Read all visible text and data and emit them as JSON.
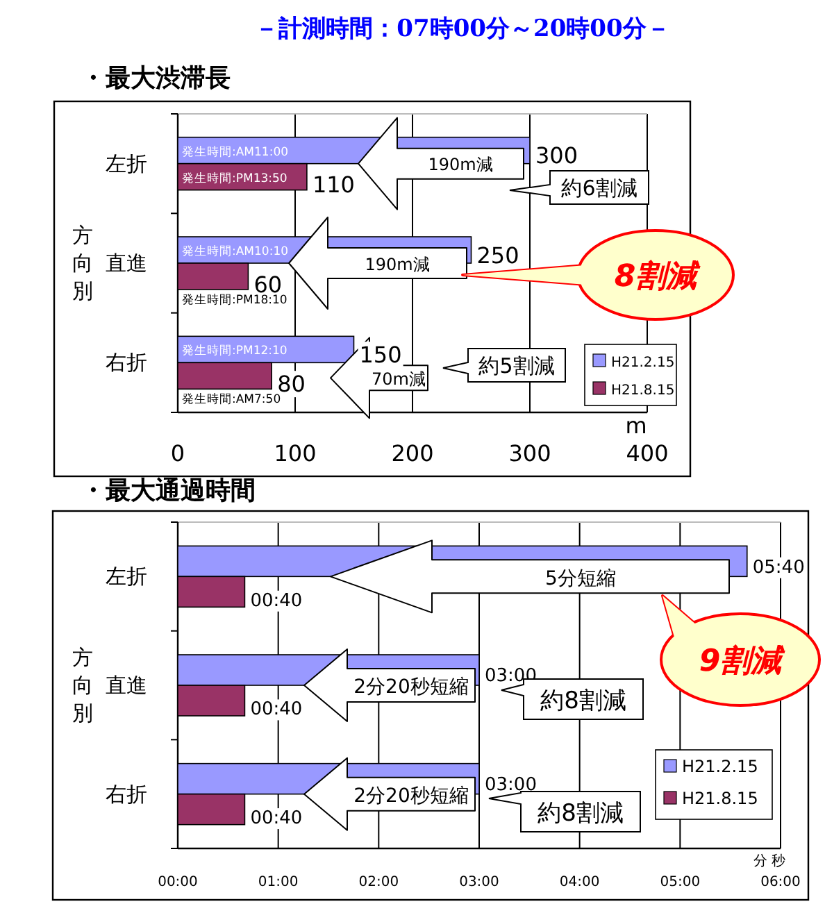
{
  "chart_data": [
    {
      "type": "bar",
      "orientation": "horizontal",
      "title": "・最大渋滞長",
      "subtitle": "－計測時間：07時00分～20時00分－",
      "xlabel": "m",
      "ylabel": "方向別",
      "categories": [
        "左折",
        "直進",
        "右折"
      ],
      "series": [
        {
          "name": "H21.2.15",
          "color": "#9999ff",
          "values": [
            300,
            250,
            150
          ]
        },
        {
          "name": "H21.8.15",
          "color": "#993366",
          "values": [
            110,
            60,
            80
          ]
        }
      ],
      "xlim": [
        0,
        400
      ],
      "xticks": [
        0,
        100,
        200,
        300,
        400
      ],
      "grid": "x",
      "legend": "bottom right",
      "data_labels": true,
      "annotations": [
        "発生時間:AM11:00",
        "発生時間:PM13:50",
        "発生時間:AM10:10",
        "発生時間:PM18:10",
        "発生時間:PM12:10",
        "発生時間:AM7:50",
        "190m減",
        "190m減",
        "70m減",
        "約6割減",
        "約5割減",
        "8割減"
      ]
    },
    {
      "type": "bar",
      "orientation": "horizontal",
      "title": "・最大通過時間",
      "xlabel": "分 秒",
      "ylabel": "方向別",
      "categories": [
        "左折",
        "直進",
        "右折"
      ],
      "series": [
        {
          "name": "H21.2.15",
          "color": "#9999ff",
          "values": [
            340,
            180,
            180
          ],
          "value_labels": [
            "05:40",
            "03:00",
            "03:00"
          ]
        },
        {
          "name": "H21.8.15",
          "color": "#993366",
          "values": [
            40,
            40,
            40
          ],
          "value_labels": [
            "00:40",
            "00:40",
            "00:40"
          ]
        }
      ],
      "xlim": [
        0,
        360
      ],
      "xticks": [
        {
          "value": 0,
          "label": "00:00"
        },
        {
          "value": 60,
          "label": "01:00"
        },
        {
          "value": 120,
          "label": "02:00"
        },
        {
          "value": 180,
          "label": "03:00"
        },
        {
          "value": 240,
          "label": "04:00"
        },
        {
          "value": 300,
          "label": "05:00"
        },
        {
          "value": 360,
          "label": "06:00"
        }
      ],
      "grid": "x",
      "legend": "bottom right",
      "annotations": [
        "5分短縮",
        "2分20秒短縮",
        "2分20秒短縮",
        "約8割減",
        "約8割減",
        "9割減"
      ]
    }
  ]
}
